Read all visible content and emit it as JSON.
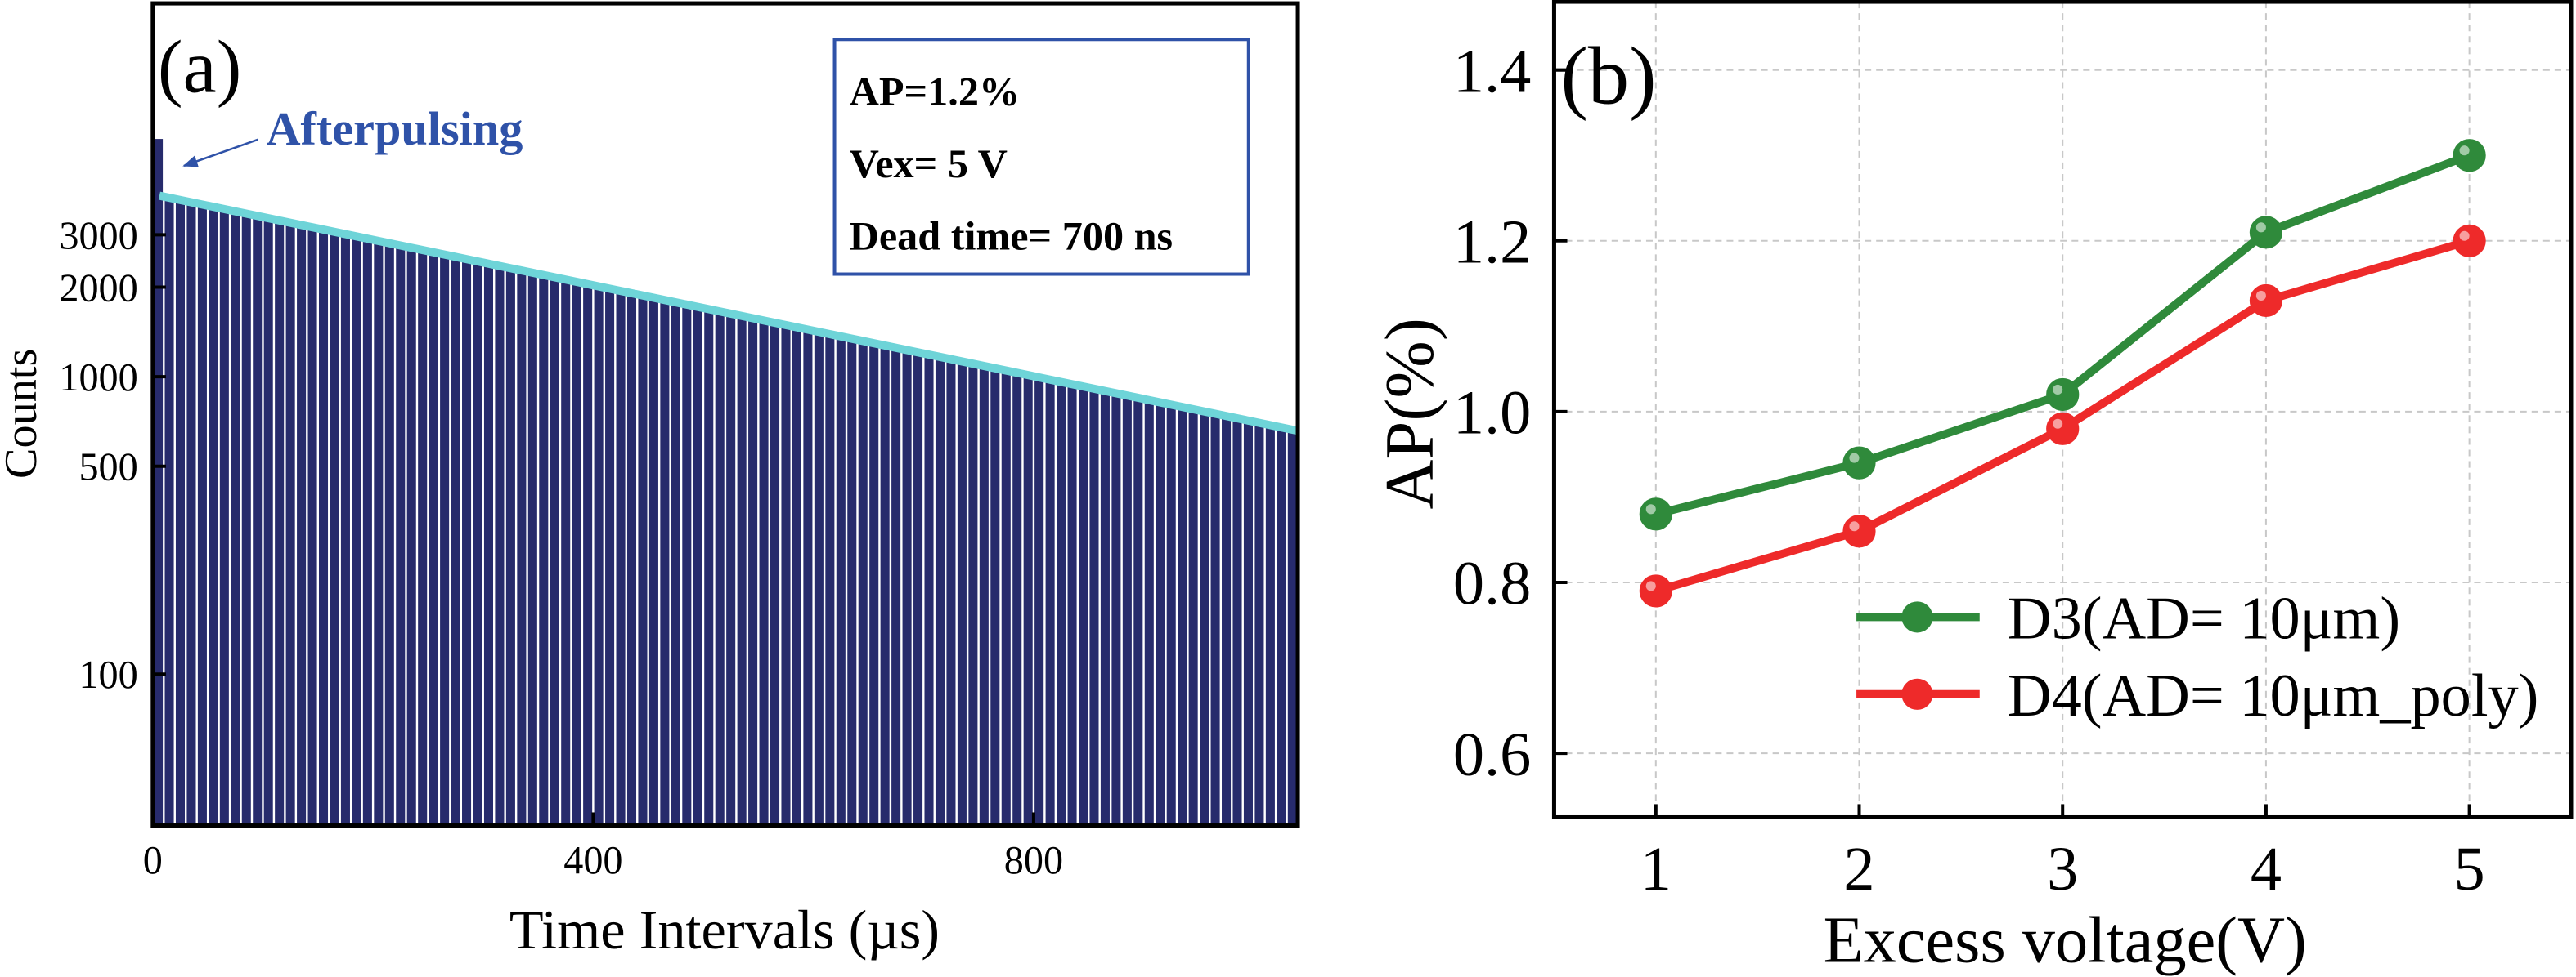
{
  "chart_data": [
    {
      "type": "histogram",
      "panel_label": "(a)",
      "xlabel": "Time Intervals (µs)",
      "ylabel": "Counts",
      "bins": [
        0,
        10,
        20,
        30,
        40,
        50,
        60,
        70,
        80,
        90,
        100,
        110,
        120,
        130,
        140,
        150,
        160,
        170,
        180,
        190,
        200,
        210,
        220,
        230,
        240,
        250,
        260,
        270,
        280,
        290,
        300,
        310,
        320,
        330,
        340,
        350,
        360,
        370,
        380,
        390,
        400,
        410,
        420,
        430,
        440,
        450,
        460,
        470,
        480,
        490,
        500,
        510,
        520,
        530,
        540,
        550,
        560,
        570,
        580,
        590,
        600,
        610,
        620,
        630,
        640,
        650,
        660,
        670,
        680,
        690,
        700,
        710,
        720,
        730,
        740,
        750,
        760,
        770,
        780,
        790,
        800,
        810,
        820,
        830,
        840,
        850,
        860,
        870,
        880,
        890,
        900,
        910,
        920,
        930,
        940,
        950,
        960,
        970,
        980,
        990,
        1000,
        1010,
        1020,
        1030,
        1040
      ],
      "values": [
        6300,
        4000,
        3930,
        3862,
        3794,
        3728,
        3663,
        3599,
        3536,
        3475,
        3414,
        3354,
        3296,
        3238,
        3182,
        3126,
        3072,
        3018,
        2965,
        2914,
        2863,
        2813,
        2764,
        2715,
        2668,
        2622,
        2576,
        2531,
        2487,
        2443,
        2401,
        2359,
        2318,
        2277,
        2237,
        2198,
        2160,
        2122,
        2085,
        2049,
        2013,
        1978,
        1943,
        1909,
        1876,
        1843,
        1811,
        1780,
        1749,
        1718,
        1688,
        1659,
        1630,
        1601,
        1573,
        1546,
        1519,
        1492,
        1466,
        1441,
        1416,
        1391,
        1367,
        1343,
        1319,
        1296,
        1274,
        1251,
        1230,
        1208,
        1187,
        1166,
        1146,
        1126,
        1106,
        1087,
        1068,
        1049,
        1031,
        1013,
        995,
        978,
        961,
        944,
        928,
        912,
        896,
        880,
        865,
        850,
        835,
        820,
        806,
        792,
        778,
        764,
        751,
        738,
        725,
        712,
        700,
        688,
        676,
        664
      ],
      "color": "#272b6c",
      "xlim": [
        0,
        1040
      ],
      "xticks": [
        0,
        400,
        800
      ],
      "ylim": [
        31,
        18000
      ],
      "yticks": [
        100,
        500,
        1000,
        2000,
        3000
      ],
      "yscale": "log",
      "fit": {
        "color": "#6ed4d8",
        "x": [
          6,
          1040
        ],
        "values": [
          4060,
          658
        ]
      },
      "annotation": {
        "text": "Afterpulsing",
        "color": "#2f52a8"
      },
      "textbox": [
        "AP=1.2%",
        "Vex= 5 V",
        "Dead time= 700 ns"
      ]
    },
    {
      "type": "line",
      "panel_label": "(b)",
      "xlabel": "Excess voltage(V)",
      "ylabel": "AP(%)",
      "x": [
        1,
        2,
        3,
        4,
        5
      ],
      "series": [
        {
          "name": "D3(AD= 10μm)",
          "color": "#2f8a3b",
          "values": [
            0.88,
            0.94,
            1.02,
            1.21,
            1.3
          ]
        },
        {
          "name": "D4(AD= 10μm_poly)",
          "color": "#ee2a2a",
          "values": [
            0.79,
            0.86,
            0.98,
            1.13,
            1.2
          ]
        }
      ],
      "xlim": [
        0.5,
        5.5
      ],
      "xticks": [
        1,
        2,
        3,
        4,
        5
      ],
      "ylim": [
        0.525,
        1.48
      ],
      "yticks": [
        0.6,
        0.8,
        {
          "value": 1,
          "label": "1.0"
        },
        1.2,
        1.4
      ],
      "grid": true,
      "legend": "lower right"
    }
  ]
}
